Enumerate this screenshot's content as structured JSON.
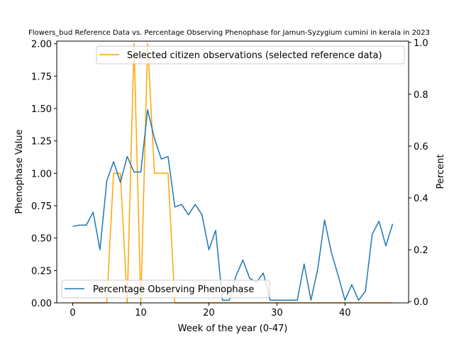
{
  "chart_data": {
    "type": "line",
    "title": "Flowers_bud Reference Data vs. Percentage Observing Phenophase for Jamun-Syzygium cumini in kerala in 2023",
    "xlabel": "Week of the year (0-47)",
    "ylabel_left": "Phenophase Value",
    "ylabel_right": "Percent",
    "xlim": [
      -2.35,
      49.35
    ],
    "ylim_left": [
      0,
      2.02
    ],
    "ylim_right": [
      -0.005,
      1.005
    ],
    "x_ticks": [
      0,
      10,
      20,
      30,
      40
    ],
    "y_ticks_left": [
      "0.00",
      "0.25",
      "0.50",
      "0.75",
      "1.00",
      "1.25",
      "1.50",
      "1.75",
      "2.00"
    ],
    "y_ticks_right": [
      "0.0",
      "0.2",
      "0.4",
      "0.6",
      "0.8",
      "1.0"
    ],
    "grid": false,
    "series": [
      {
        "name": "Selected citizen observations (selected reference data)",
        "axis": "left",
        "color": "#ffa500",
        "legend_position": "upper right",
        "x": [
          0,
          1,
          2,
          3,
          4,
          5,
          6,
          7,
          8,
          9,
          10,
          11,
          12,
          13,
          14,
          15,
          16,
          17,
          18,
          19,
          20,
          21,
          22,
          23,
          24,
          25,
          26,
          27,
          28,
          29,
          30,
          31,
          32,
          33,
          34,
          35,
          36,
          37,
          38,
          39,
          40,
          41,
          42,
          43,
          44,
          45,
          46,
          47
        ],
        "values": [
          0,
          0,
          0,
          0,
          0,
          0,
          1,
          1,
          0,
          2,
          0,
          2,
          1,
          1,
          1,
          0,
          0,
          0,
          0,
          0,
          0,
          0,
          0,
          0,
          0,
          0,
          0,
          0,
          0,
          0,
          0,
          0,
          0,
          0,
          0,
          0,
          0,
          0,
          0,
          0,
          0,
          0,
          0,
          0,
          0,
          0,
          0,
          0
        ]
      },
      {
        "name": "Percentage Observing Phenophase",
        "axis": "right",
        "color": "#1f77b4",
        "legend_position": "lower left",
        "x": [
          0,
          1,
          2,
          3,
          4,
          5,
          6,
          7,
          8,
          9,
          10,
          11,
          12,
          13,
          14,
          15,
          16,
          17,
          18,
          19,
          20,
          21,
          22,
          23,
          24,
          25,
          26,
          27,
          28,
          29,
          30,
          31,
          32,
          33,
          34,
          35,
          36,
          37,
          38,
          39,
          40,
          41,
          42,
          43,
          44,
          45,
          46,
          47
        ],
        "values": [
          0.29,
          0.295,
          0.295,
          0.345,
          0.2,
          0.465,
          0.54,
          0.46,
          0.56,
          0.5,
          0.5,
          0.74,
          0.63,
          0.55,
          0.56,
          0.365,
          0.375,
          0.335,
          0.375,
          0.335,
          0.2,
          0.275,
          0.005,
          0.005,
          0.1,
          0.16,
          0.09,
          0.075,
          0.11,
          0.005,
          0.005,
          0.005,
          0.005,
          0.005,
          0.145,
          0.005,
          0.125,
          0.315,
          0.19,
          0.1,
          0.005,
          0.065,
          0.005,
          0.04,
          0.26,
          0.31,
          0.215,
          0.3
        ]
      }
    ]
  }
}
